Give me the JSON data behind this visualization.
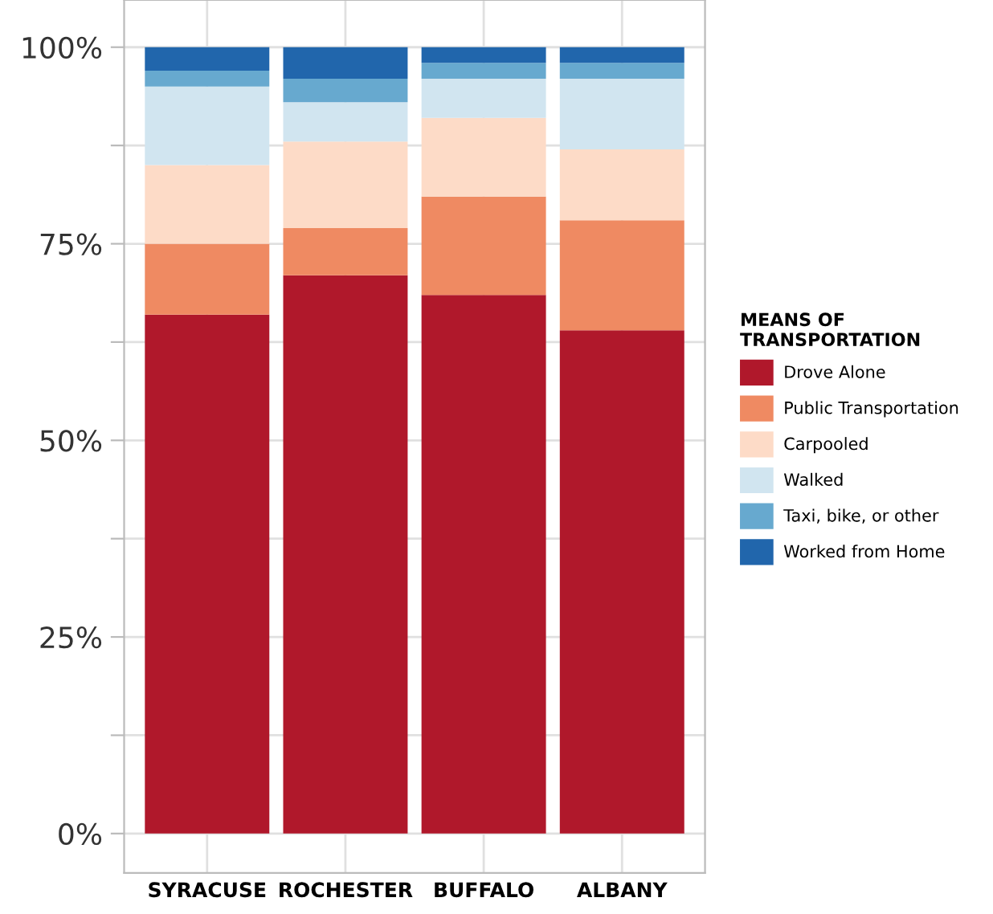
{
  "chart_data": {
    "type": "bar",
    "stacked": true,
    "categories": [
      "SYRACUSE",
      "ROCHESTER",
      "BUFFALO",
      "ALBANY"
    ],
    "series": [
      {
        "name": "Drove Alone",
        "color": "#b0182b",
        "values": [
          66,
          71,
          68.5,
          64
        ]
      },
      {
        "name": "Public Transportation",
        "color": "#ef8a62",
        "values": [
          9,
          6,
          12.5,
          14
        ]
      },
      {
        "name": "Carpooled",
        "color": "#fddbc7",
        "values": [
          10,
          11,
          10,
          9
        ]
      },
      {
        "name": "Walked",
        "color": "#d1e5f0",
        "values": [
          10,
          5,
          5,
          9
        ]
      },
      {
        "name": "Taxi, bike, or other",
        "color": "#67a9cf",
        "values": [
          2,
          3,
          2,
          2
        ]
      },
      {
        "name": "Worked from Home",
        "color": "#2166ac",
        "values": [
          3,
          4,
          2,
          2
        ]
      }
    ],
    "ylim": [
      -5,
      106
    ],
    "yticks": [
      {
        "value": 0,
        "label": "0%"
      },
      {
        "value": 12.5,
        "label": null
      },
      {
        "value": 25,
        "label": "25%"
      },
      {
        "value": 37.5,
        "label": null
      },
      {
        "value": 50,
        "label": "50%"
      },
      {
        "value": 62.5,
        "label": null
      },
      {
        "value": 75,
        "label": "75%"
      },
      {
        "value": 87.5,
        "label": null
      },
      {
        "value": 100,
        "label": "100%"
      }
    ],
    "grid": true,
    "legend": "right",
    "legend_title": "MEANS OF\nTRANSPORTATION"
  }
}
